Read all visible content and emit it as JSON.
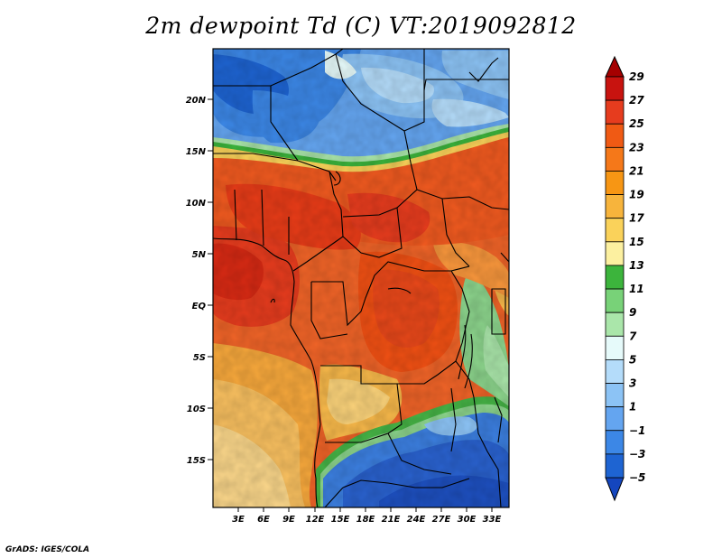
{
  "title": "2m dewpoint Td (C) VT:2019092812",
  "credit": "GrADS: IGES/COLA",
  "lat_labels": [
    "20N",
    "15N",
    "10N",
    "5N",
    "EQ",
    "5S",
    "10S",
    "15S"
  ],
  "lon_labels": [
    "3E",
    "6E",
    "9E",
    "12E",
    "15E",
    "18E",
    "21E",
    "24E",
    "27E",
    "30E",
    "33E"
  ],
  "colorbar": {
    "labels": [
      "29",
      "27",
      "25",
      "23",
      "21",
      "19",
      "17",
      "15",
      "13",
      "11",
      "9",
      "7",
      "5",
      "3",
      "1",
      "-1",
      "-3",
      "-5"
    ],
    "colors": [
      "#a50000",
      "#c8130f",
      "#e63c1e",
      "#f05a14",
      "#f57819",
      "#f79614",
      "#f7b43c",
      "#fad25a",
      "#fcf0a0",
      "#3cb43c",
      "#78d278",
      "#aae6aa",
      "#e6fafa",
      "#b4dcfa",
      "#8cc3f5",
      "#64a5f0",
      "#3c87e6",
      "#1e64d2",
      "#1446be"
    ]
  }
}
